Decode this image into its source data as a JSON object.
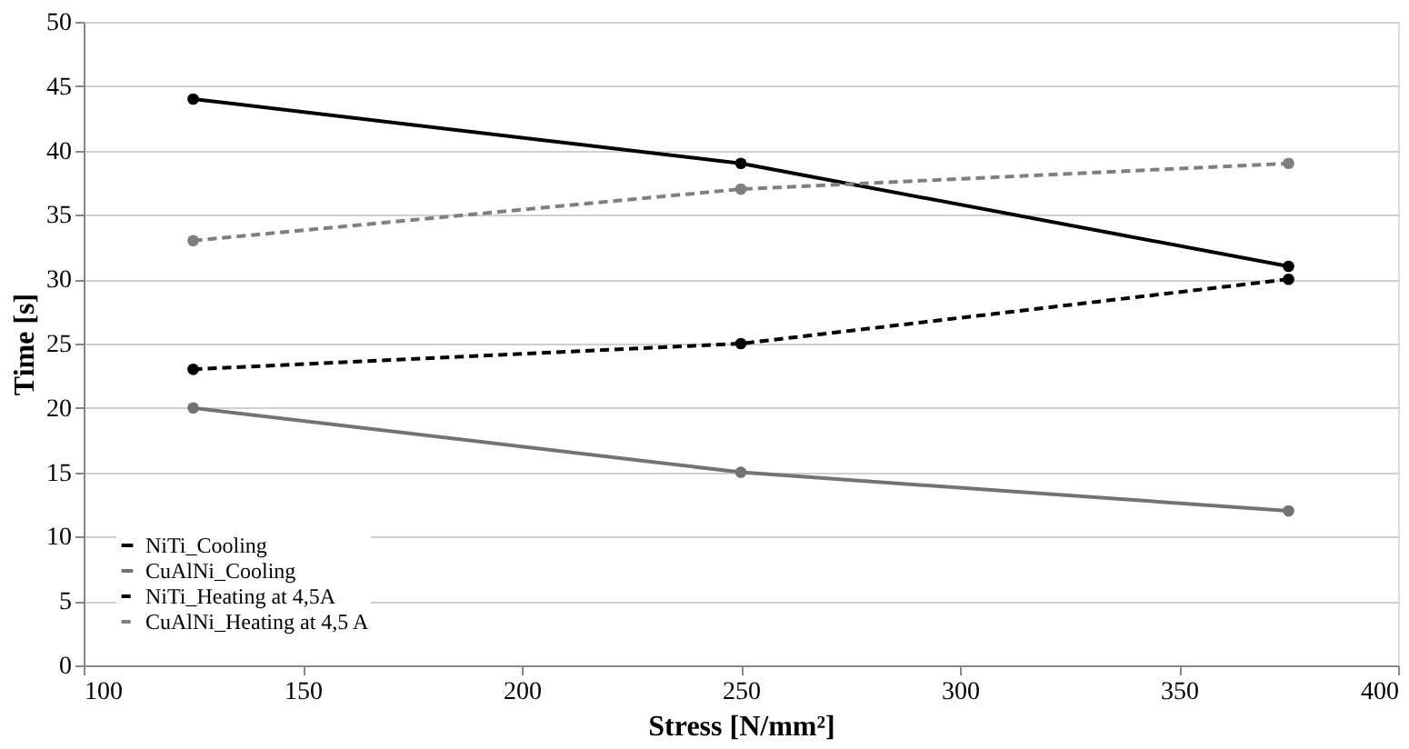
{
  "chart_data": {
    "type": "line",
    "xlabel": "Stress [N/mm²]",
    "ylabel": "Time [s]",
    "x": [
      125,
      250,
      375
    ],
    "series": [
      {
        "name": "NiTi_Cooling",
        "color": "#000000",
        "line_style": "solid",
        "values": [
          44,
          39,
          31
        ]
      },
      {
        "name": "CuAlNi_Cooling",
        "color": "#737373",
        "line_style": "solid",
        "values": [
          20,
          15,
          12
        ]
      },
      {
        "name": "NiTi_Heating at 4,5A",
        "color": "#000000",
        "line_style": "dashed",
        "values": [
          23,
          25,
          30
        ]
      },
      {
        "name": "CuAlNi_Heating at 4,5 A",
        "color": "#7f7f7f",
        "line_style": "dashed",
        "values": [
          33,
          37,
          39
        ]
      }
    ],
    "xlim": [
      100,
      400
    ],
    "xticks": [
      100,
      150,
      200,
      250,
      300,
      350,
      400
    ],
    "ylim": [
      0,
      50
    ],
    "yticks": [
      0,
      5,
      10,
      15,
      20,
      25,
      30,
      35,
      40,
      45,
      50
    ],
    "grid": "y",
    "legend": "bottom left",
    "marker": "circle"
  }
}
